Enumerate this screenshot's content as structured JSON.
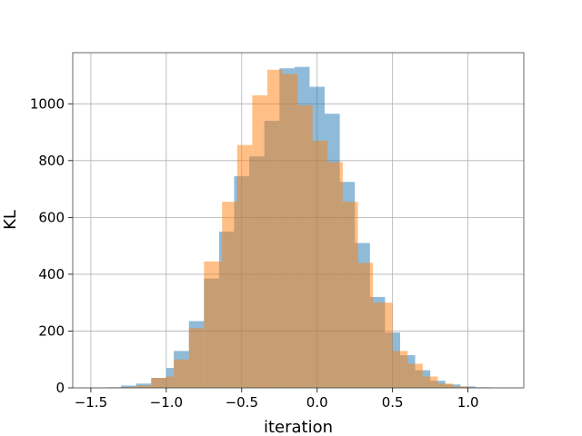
{
  "chart_data": {
    "type": "bar",
    "subtype": "overlaid-histogram",
    "title": "",
    "xlabel": "iteration",
    "ylabel": "KL",
    "xlim": [
      -1.62,
      1.37
    ],
    "ylim": [
      0,
      1180
    ],
    "grid": true,
    "xticks": [
      -1.5,
      -1.0,
      -0.5,
      0.0,
      0.5,
      1.0
    ],
    "xtick_labels": [
      "−1.5",
      "−1.0",
      "−0.5",
      "0.0",
      "0.5",
      "1.0"
    ],
    "yticks": [
      0,
      200,
      400,
      600,
      800,
      1000
    ],
    "ytick_labels": [
      "0",
      "200",
      "400",
      "600",
      "800",
      "1000"
    ],
    "series": [
      {
        "color": "#1f77b4",
        "opacity": 0.5,
        "bins": [
          {
            "x0": -1.4,
            "x1": -1.3,
            "count": 2
          },
          {
            "x0": -1.3,
            "x1": -1.2,
            "count": 8
          },
          {
            "x0": -1.2,
            "x1": -1.1,
            "count": 15
          },
          {
            "x0": -1.1,
            "x1": -1.0,
            "count": 35
          },
          {
            "x0": -1.0,
            "x1": -0.95,
            "count": 70
          },
          {
            "x0": -0.95,
            "x1": -0.85,
            "count": 130
          },
          {
            "x0": -0.85,
            "x1": -0.75,
            "count": 235
          },
          {
            "x0": -0.75,
            "x1": -0.65,
            "count": 385
          },
          {
            "x0": -0.65,
            "x1": -0.55,
            "count": 550
          },
          {
            "x0": -0.55,
            "x1": -0.45,
            "count": 745
          },
          {
            "x0": -0.45,
            "x1": -0.35,
            "count": 815
          },
          {
            "x0": -0.35,
            "x1": -0.25,
            "count": 940
          },
          {
            "x0": -0.25,
            "x1": -0.15,
            "count": 1125
          },
          {
            "x0": -0.15,
            "x1": -0.05,
            "count": 1130
          },
          {
            "x0": -0.05,
            "x1": 0.05,
            "count": 1060
          },
          {
            "x0": 0.05,
            "x1": 0.15,
            "count": 965
          },
          {
            "x0": 0.15,
            "x1": 0.25,
            "count": 725
          },
          {
            "x0": 0.25,
            "x1": 0.35,
            "count": 510
          },
          {
            "x0": 0.35,
            "x1": 0.45,
            "count": 320
          },
          {
            "x0": 0.45,
            "x1": 0.55,
            "count": 195
          },
          {
            "x0": 0.55,
            "x1": 0.65,
            "count": 115
          },
          {
            "x0": 0.65,
            "x1": 0.75,
            "count": 62
          },
          {
            "x0": 0.75,
            "x1": 0.85,
            "count": 25
          },
          {
            "x0": 0.85,
            "x1": 0.95,
            "count": 12
          },
          {
            "x0": 0.95,
            "x1": 1.05,
            "count": 5
          },
          {
            "x0": 1.05,
            "x1": 1.15,
            "count": 2
          }
        ]
      },
      {
        "color": "#ff7f0e",
        "opacity": 0.5,
        "bins": [
          {
            "x0": -1.3,
            "x1": -1.2,
            "count": 3
          },
          {
            "x0": -1.2,
            "x1": -1.1,
            "count": 8
          },
          {
            "x0": -1.1,
            "x1": -1.0,
            "count": 35
          },
          {
            "x0": -1.0,
            "x1": -0.95,
            "count": 40
          },
          {
            "x0": -0.95,
            "x1": -0.85,
            "count": 100
          },
          {
            "x0": -0.85,
            "x1": -0.75,
            "count": 210
          },
          {
            "x0": -0.75,
            "x1": -0.63,
            "count": 445
          },
          {
            "x0": -0.63,
            "x1": -0.53,
            "count": 655
          },
          {
            "x0": -0.53,
            "x1": -0.43,
            "count": 855
          },
          {
            "x0": -0.43,
            "x1": -0.33,
            "count": 1030
          },
          {
            "x0": -0.33,
            "x1": -0.23,
            "count": 1120
          },
          {
            "x0": -0.23,
            "x1": -0.13,
            "count": 1105
          },
          {
            "x0": -0.13,
            "x1": -0.03,
            "count": 995
          },
          {
            "x0": -0.03,
            "x1": 0.07,
            "count": 870
          },
          {
            "x0": 0.07,
            "x1": 0.17,
            "count": 795
          },
          {
            "x0": 0.17,
            "x1": 0.27,
            "count": 655
          },
          {
            "x0": 0.27,
            "x1": 0.37,
            "count": 440
          },
          {
            "x0": 0.37,
            "x1": 0.5,
            "count": 300
          },
          {
            "x0": 0.5,
            "x1": 0.6,
            "count": 130
          },
          {
            "x0": 0.6,
            "x1": 0.7,
            "count": 85
          },
          {
            "x0": 0.7,
            "x1": 0.8,
            "count": 40
          },
          {
            "x0": 0.8,
            "x1": 0.9,
            "count": 15
          },
          {
            "x0": 0.9,
            "x1": 1.0,
            "count": 5
          }
        ]
      }
    ]
  }
}
